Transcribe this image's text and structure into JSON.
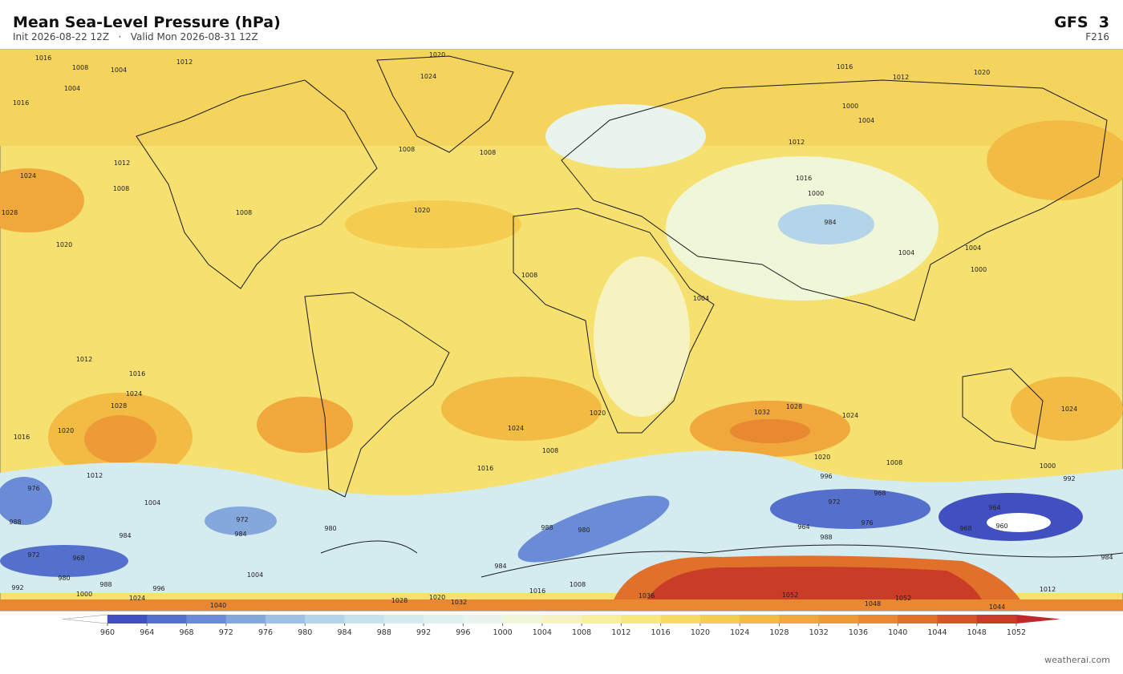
{
  "header": {
    "title": "Mean Sea-Level Pressure  (hPa)",
    "run": "Init 2026-08-22 12Z   ·   Valid Mon 2026-08-31 12Z",
    "model": "GFS  3",
    "step": "F216"
  },
  "colorbar": {
    "range": [
      960,
      1052
    ],
    "ticks": [
      960,
      964,
      968,
      972,
      976,
      980,
      984,
      988,
      992,
      996,
      1000,
      1004,
      1008,
      1012,
      1016,
      1020,
      1024,
      1028,
      1032,
      1036,
      1040,
      1044,
      1048,
      1052
    ],
    "colors": [
      "#4050c0",
      "#5570cc",
      "#6a8cd6",
      "#84a8dc",
      "#9dc0e4",
      "#b4d4ea",
      "#c6e2ee",
      "#d4ebf0",
      "#dff0f0",
      "#e8f4ec",
      "#f0f6d8",
      "#f6f3c0",
      "#f8ef9c",
      "#f8e880",
      "#f6dc64",
      "#f4cc50",
      "#f2bc44",
      "#f0a83c",
      "#ee9a36",
      "#e88830",
      "#e0702a",
      "#d45628",
      "#c83c28"
    ],
    "under_color": "#ffffff",
    "over_color": "#c0282a"
  },
  "map": {
    "contour_labels": [
      1016,
      1012,
      1008,
      1004,
      1004,
      1020,
      1024,
      1016,
      1012,
      1008,
      1024,
      1028,
      1020,
      1008,
      1008,
      1020,
      1008,
      1016,
      1012,
      1020,
      1000,
      1004,
      1012,
      1016,
      1000,
      984,
      1004,
      1000,
      1004,
      1004,
      1008,
      1012,
      1016,
      1024,
      1028,
      1032,
      1028,
      1024,
      1024,
      1020,
      1024,
      1008,
      1020,
      1008,
      1016,
      1000,
      992,
      996,
      1020,
      1016,
      1012,
      1004,
      988,
      976,
      972,
      980,
      984,
      984,
      988,
      980,
      976,
      968,
      972,
      964,
      964,
      960,
      968,
      972,
      968,
      980,
      988,
      996,
      1004,
      992,
      1000,
      1024,
      1040,
      1028,
      1020,
      1032,
      1016,
      1008,
      1036,
      1052,
      1048,
      1052,
      1044,
      1012,
      984,
      988,
      984
    ]
  },
  "footer": {
    "credit": "weatherai.com"
  }
}
